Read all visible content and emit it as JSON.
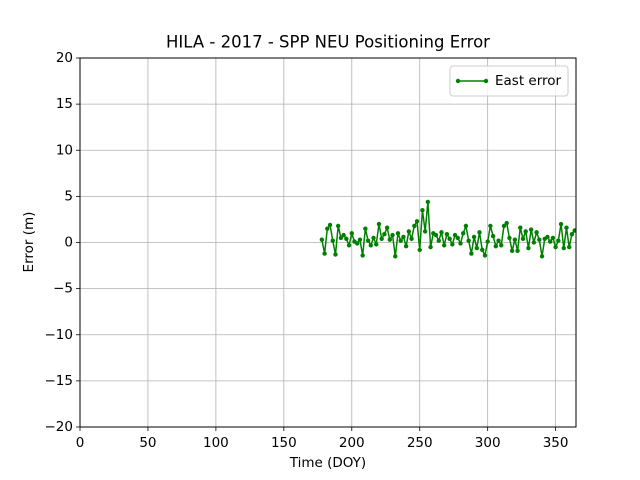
{
  "chart_data": {
    "type": "line",
    "title": "HILA - 2017 - SPP NEU Positioning Error",
    "xlabel": "Time (DOY)",
    "ylabel": "Error (m)",
    "xlim": [
      0,
      365
    ],
    "ylim": [
      -20,
      20
    ],
    "xticks": [
      0,
      50,
      100,
      150,
      200,
      250,
      300,
      350
    ],
    "yticks": [
      {
        "value": -20,
        "label": "−20"
      },
      {
        "value": -15,
        "label": "−15"
      },
      {
        "value": -10,
        "label": "−10"
      },
      {
        "value": -5,
        "label": "−5"
      },
      0,
      5,
      10,
      15,
      20
    ],
    "grid": true,
    "legend": "upper right",
    "x": [
      178,
      180,
      182,
      184,
      186,
      188,
      190,
      192,
      194,
      196,
      198,
      200,
      202,
      204,
      206,
      208,
      210,
      212,
      214,
      216,
      218,
      220,
      222,
      224,
      226,
      228,
      230,
      232,
      234,
      236,
      238,
      240,
      242,
      244,
      246,
      248,
      250,
      252,
      254,
      256,
      258,
      260,
      262,
      264,
      266,
      268,
      270,
      272,
      274,
      276,
      278,
      280,
      282,
      284,
      286,
      288,
      290,
      292,
      294,
      296,
      298,
      300,
      302,
      304,
      306,
      308,
      310,
      312,
      314,
      316,
      318,
      320,
      322,
      324,
      326,
      328,
      330,
      332,
      334,
      336,
      338,
      340,
      342,
      344,
      346,
      348,
      350,
      352,
      354,
      356,
      358,
      360,
      362,
      364
    ],
    "series": [
      {
        "name": "East error",
        "color": "#008000",
        "values": [
          0.3,
          -1.2,
          1.5,
          1.9,
          0.2,
          -1.3,
          1.8,
          0.5,
          0.8,
          0.4,
          -0.3,
          1.0,
          0.1,
          -0.1,
          0.3,
          -1.4,
          1.5,
          0.2,
          -0.3,
          0.5,
          -0.2,
          2.0,
          0.4,
          0.9,
          1.6,
          0.3,
          0.8,
          -1.5,
          1.0,
          0.2,
          0.6,
          -0.4,
          1.2,
          0.4,
          1.8,
          2.3,
          -0.8,
          3.5,
          1.2,
          4.4,
          -0.5,
          1.0,
          0.8,
          0.2,
          1.1,
          -0.3,
          0.9,
          0.4,
          -0.2,
          0.8,
          0.5,
          -0.1,
          1.0,
          1.8,
          0.2,
          -1.2,
          0.6,
          -0.6,
          1.1,
          -0.8,
          -1.4,
          0.1,
          1.8,
          0.7,
          -0.4,
          0.2,
          -0.3,
          1.8,
          2.1,
          0.5,
          -0.9,
          0.3,
          -0.9,
          1.6,
          0.4,
          1.2,
          -0.6,
          1.4,
          0.0,
          1.1,
          0.3,
          -1.5,
          0.4,
          0.6,
          0.1,
          0.5,
          -0.5,
          0.2,
          2.0,
          -0.6,
          1.6,
          -0.5,
          0.9,
          1.3
        ]
      }
    ]
  }
}
